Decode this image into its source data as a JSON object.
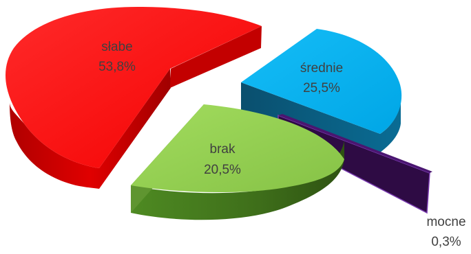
{
  "chart_data": {
    "type": "pie",
    "style": "3d-exploded",
    "title": "",
    "legend": "none",
    "slices": [
      {
        "label": "słabe",
        "value": 53.8,
        "value_label": "53,8%",
        "color": "#ff0000"
      },
      {
        "label": "średnie",
        "value": 25.5,
        "value_label": "25,5%",
        "color": "#00b0f0"
      },
      {
        "label": "mocne",
        "value": 0.3,
        "value_label": "0,3%",
        "color": "#330a48"
      },
      {
        "label": "brak",
        "value": 20.5,
        "value_label": "20,5%",
        "color": "#92d050"
      }
    ]
  }
}
